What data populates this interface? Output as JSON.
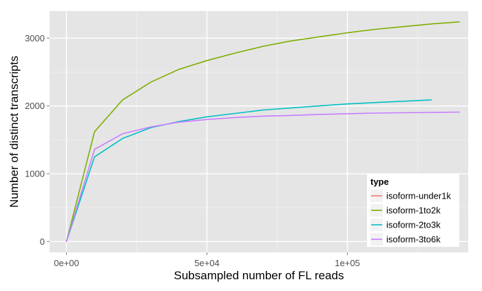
{
  "chart_data": {
    "type": "line",
    "title": "",
    "xlabel": "Subsampled number of FL reads",
    "ylabel": "Number of distinct transcripts",
    "xlim": [
      -6000,
      143000
    ],
    "ylim": [
      -160,
      3400
    ],
    "x_ticks": [
      {
        "value": 0,
        "label": "0e+00"
      },
      {
        "value": 50000,
        "label": "5e+04"
      },
      {
        "value": 100000,
        "label": "1e+05"
      }
    ],
    "y_ticks": [
      {
        "value": 0,
        "label": "0"
      },
      {
        "value": 1000,
        "label": "1000"
      },
      {
        "value": 2000,
        "label": "2000"
      },
      {
        "value": 3000,
        "label": "3000"
      }
    ],
    "grid": true,
    "background": "#e5e5e5",
    "legend": {
      "title": "type",
      "position": "bottom-right"
    },
    "series": [
      {
        "name": "isoform-under1k",
        "color": "#F8766D",
        "x": [
          0
        ],
        "y": [
          0
        ]
      },
      {
        "name": "isoform-1to2k",
        "color": "#7CAE00",
        "x": [
          0,
          10000,
          20000,
          30000,
          40000,
          50000,
          60000,
          70000,
          80000,
          90000,
          100000,
          110000,
          120000,
          130000,
          140000
        ],
        "y": [
          0,
          1620,
          2090,
          2350,
          2540,
          2670,
          2780,
          2880,
          2960,
          3020,
          3080,
          3130,
          3170,
          3210,
          3240
        ]
      },
      {
        "name": "isoform-2to3k",
        "color": "#00BFC4",
        "x": [
          0,
          10000,
          20000,
          30000,
          40000,
          50000,
          60000,
          70000,
          80000,
          90000,
          100000,
          110000,
          120000,
          130000
        ],
        "y": [
          0,
          1250,
          1520,
          1680,
          1770,
          1840,
          1890,
          1940,
          1970,
          2000,
          2030,
          2050,
          2070,
          2090
        ]
      },
      {
        "name": "isoform-3to6k",
        "color": "#C77CFF",
        "x": [
          0,
          10000,
          20000,
          30000,
          40000,
          50000,
          60000,
          70000,
          80000,
          90000,
          100000,
          110000,
          120000,
          130000,
          140000
        ],
        "y": [
          0,
          1360,
          1590,
          1690,
          1760,
          1800,
          1830,
          1850,
          1860,
          1875,
          1885,
          1895,
          1900,
          1905,
          1910
        ]
      }
    ]
  }
}
